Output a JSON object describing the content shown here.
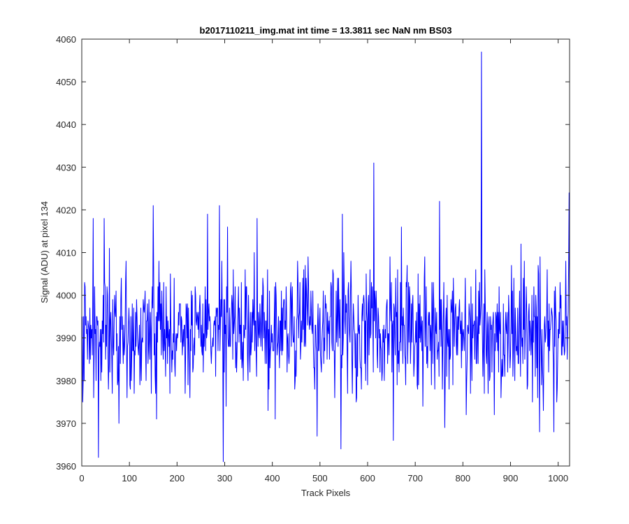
{
  "chart_data": {
    "type": "line",
    "title": "b2017110211_img.mat int time = 13.3811 sec  NaN nm BS03",
    "xlabel": "Track Pixels",
    "ylabel": "Signal (ADU) at pixel 134",
    "xlim": [
      0,
      1024
    ],
    "ylim": [
      3960,
      4060
    ],
    "xticks": [
      0,
      100,
      200,
      300,
      400,
      500,
      600,
      700,
      800,
      900,
      1000
    ],
    "yticks": [
      3960,
      3970,
      3980,
      3990,
      4000,
      4010,
      4020,
      4030,
      4040,
      4050,
      4060
    ],
    "grid": false,
    "legend": "none",
    "series_color": "#0000ff",
    "baseline_mean": 3992,
    "noise_range": [
      3962,
      4021
    ],
    "x_range": [
      1,
      1024
    ],
    "notable_points": [
      {
        "x": 2,
        "y": 3975
      },
      {
        "x": 24,
        "y": 4018
      },
      {
        "x": 35,
        "y": 3962
      },
      {
        "x": 47,
        "y": 4018
      },
      {
        "x": 150,
        "y": 4021
      },
      {
        "x": 157,
        "y": 3971
      },
      {
        "x": 264,
        "y": 4019
      },
      {
        "x": 289,
        "y": 4021
      },
      {
        "x": 297,
        "y": 3961
      },
      {
        "x": 368,
        "y": 4018
      },
      {
        "x": 494,
        "y": 3967
      },
      {
        "x": 544,
        "y": 3964
      },
      {
        "x": 547,
        "y": 4019
      },
      {
        "x": 613,
        "y": 4031
      },
      {
        "x": 654,
        "y": 3966
      },
      {
        "x": 751,
        "y": 4022
      },
      {
        "x": 762,
        "y": 3969
      },
      {
        "x": 839,
        "y": 4057
      },
      {
        "x": 961,
        "y": 3968
      },
      {
        "x": 991,
        "y": 3968
      },
      {
        "x": 1023,
        "y": 4024
      }
    ]
  }
}
